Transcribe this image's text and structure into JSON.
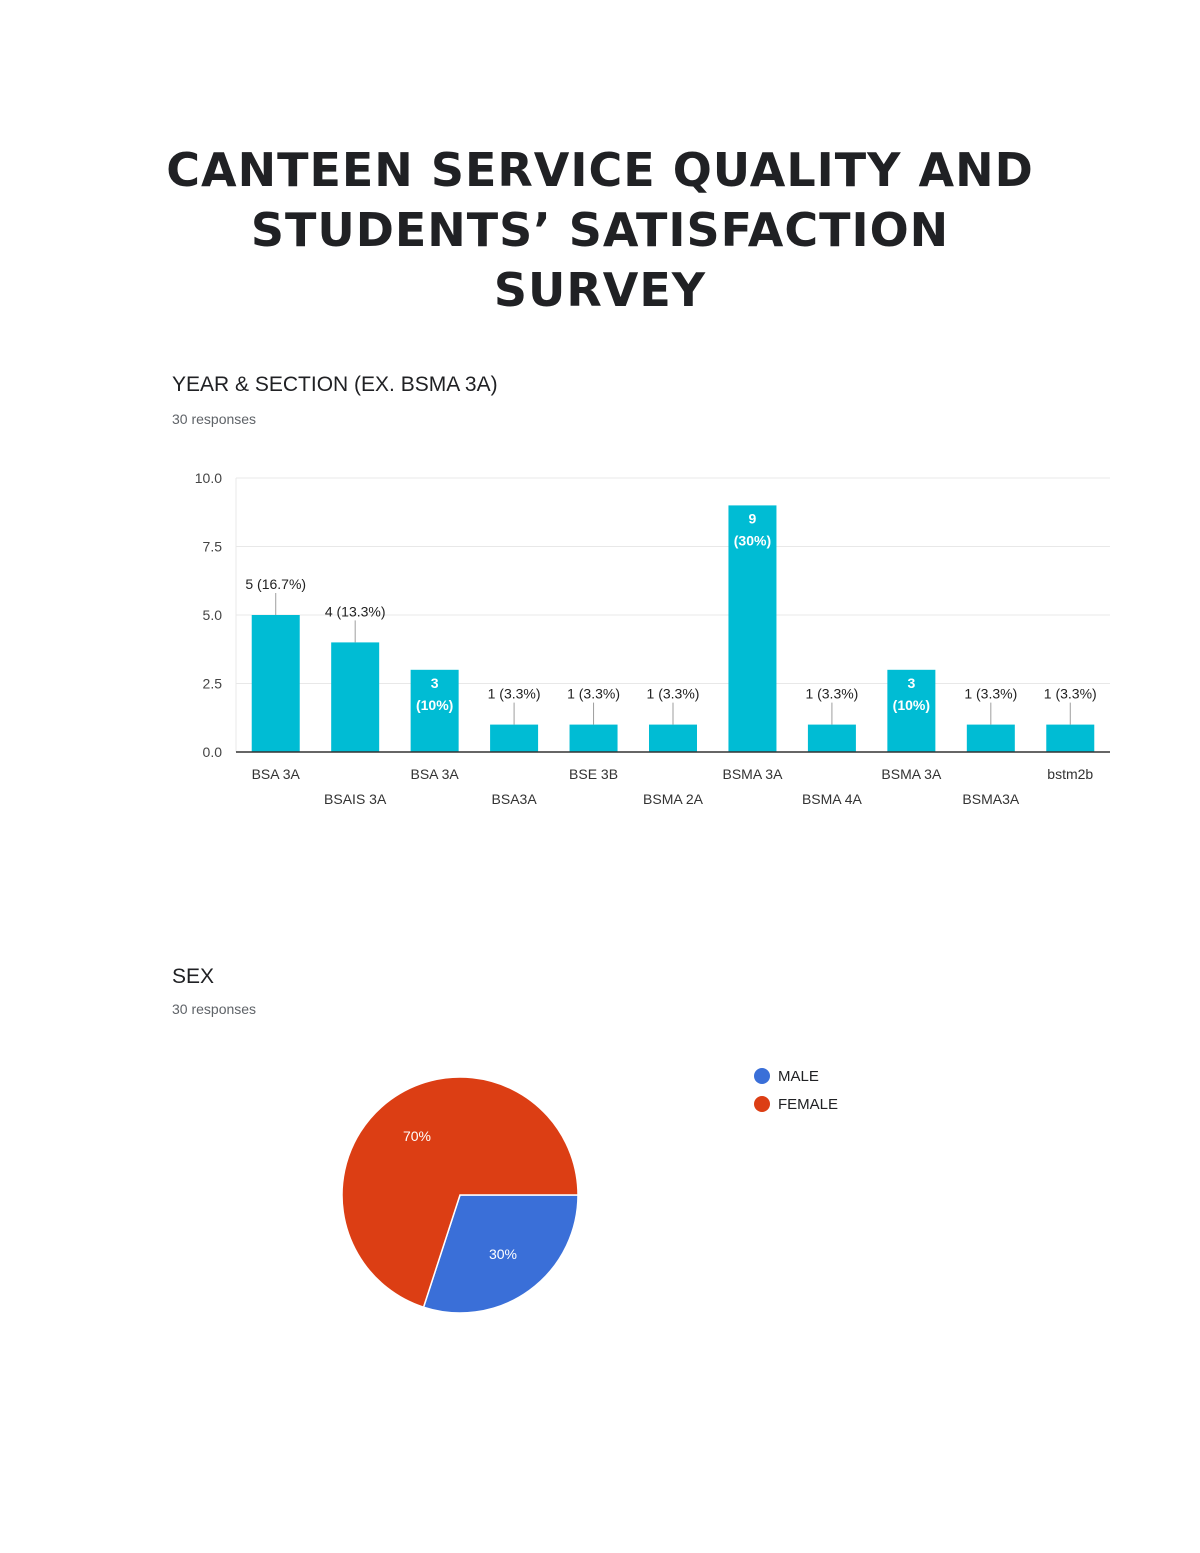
{
  "document": {
    "title_lines": [
      "CANTEEN SERVICE QUALITY AND",
      "STUDENTS’ SATISFACTION",
      "SURVEY"
    ]
  },
  "year_section": {
    "question": "YEAR & SECTION (EX. BSMA 3A)",
    "responses": "30 responses"
  },
  "sex": {
    "question": "SEX",
    "responses": "30 responses"
  },
  "colors": {
    "bar": "#00bcd4",
    "male": "#3a6fd8",
    "female": "#dc3e14",
    "grid": "#e8e8e8",
    "axis": "#333333"
  },
  "chart_data": [
    {
      "type": "bar",
      "title": "YEAR & SECTION (EX. BSMA 3A)",
      "categories": [
        "BSA 3A",
        "BSAIS 3A",
        "BSA 3A",
        "BSA3A",
        "BSE 3B",
        "BSMA 2A",
        "BSMA 3A",
        "BSMA 4A",
        "BSMA 3A",
        "BSMA3A",
        "bstm2b"
      ],
      "values": [
        5,
        4,
        3,
        1,
        1,
        1,
        9,
        1,
        3,
        1,
        1
      ],
      "data_labels": [
        "5 (16.7%)",
        "4 (13.3%)",
        "3 (10%)",
        "1 (3.3%)",
        "1 (3.3%)",
        "1 (3.3%)",
        "9 (30%)",
        "1 (3.3%)",
        "3 (10%)",
        "1 (3.3%)",
        "1 (3.3%)"
      ],
      "label_inside": [
        false,
        false,
        true,
        false,
        false,
        false,
        true,
        false,
        true,
        false,
        false
      ],
      "yticks": [
        "0.0",
        "2.5",
        "5.0",
        "7.5",
        "10.0"
      ],
      "ylim": [
        0,
        10
      ],
      "grid": true,
      "xlabel": "",
      "ylabel": ""
    },
    {
      "type": "pie",
      "title": "SEX",
      "labels": [
        "MALE",
        "FEMALE"
      ],
      "values": [
        30,
        70
      ],
      "slice_labels": [
        "30%",
        "70%"
      ],
      "legend": "right"
    }
  ]
}
